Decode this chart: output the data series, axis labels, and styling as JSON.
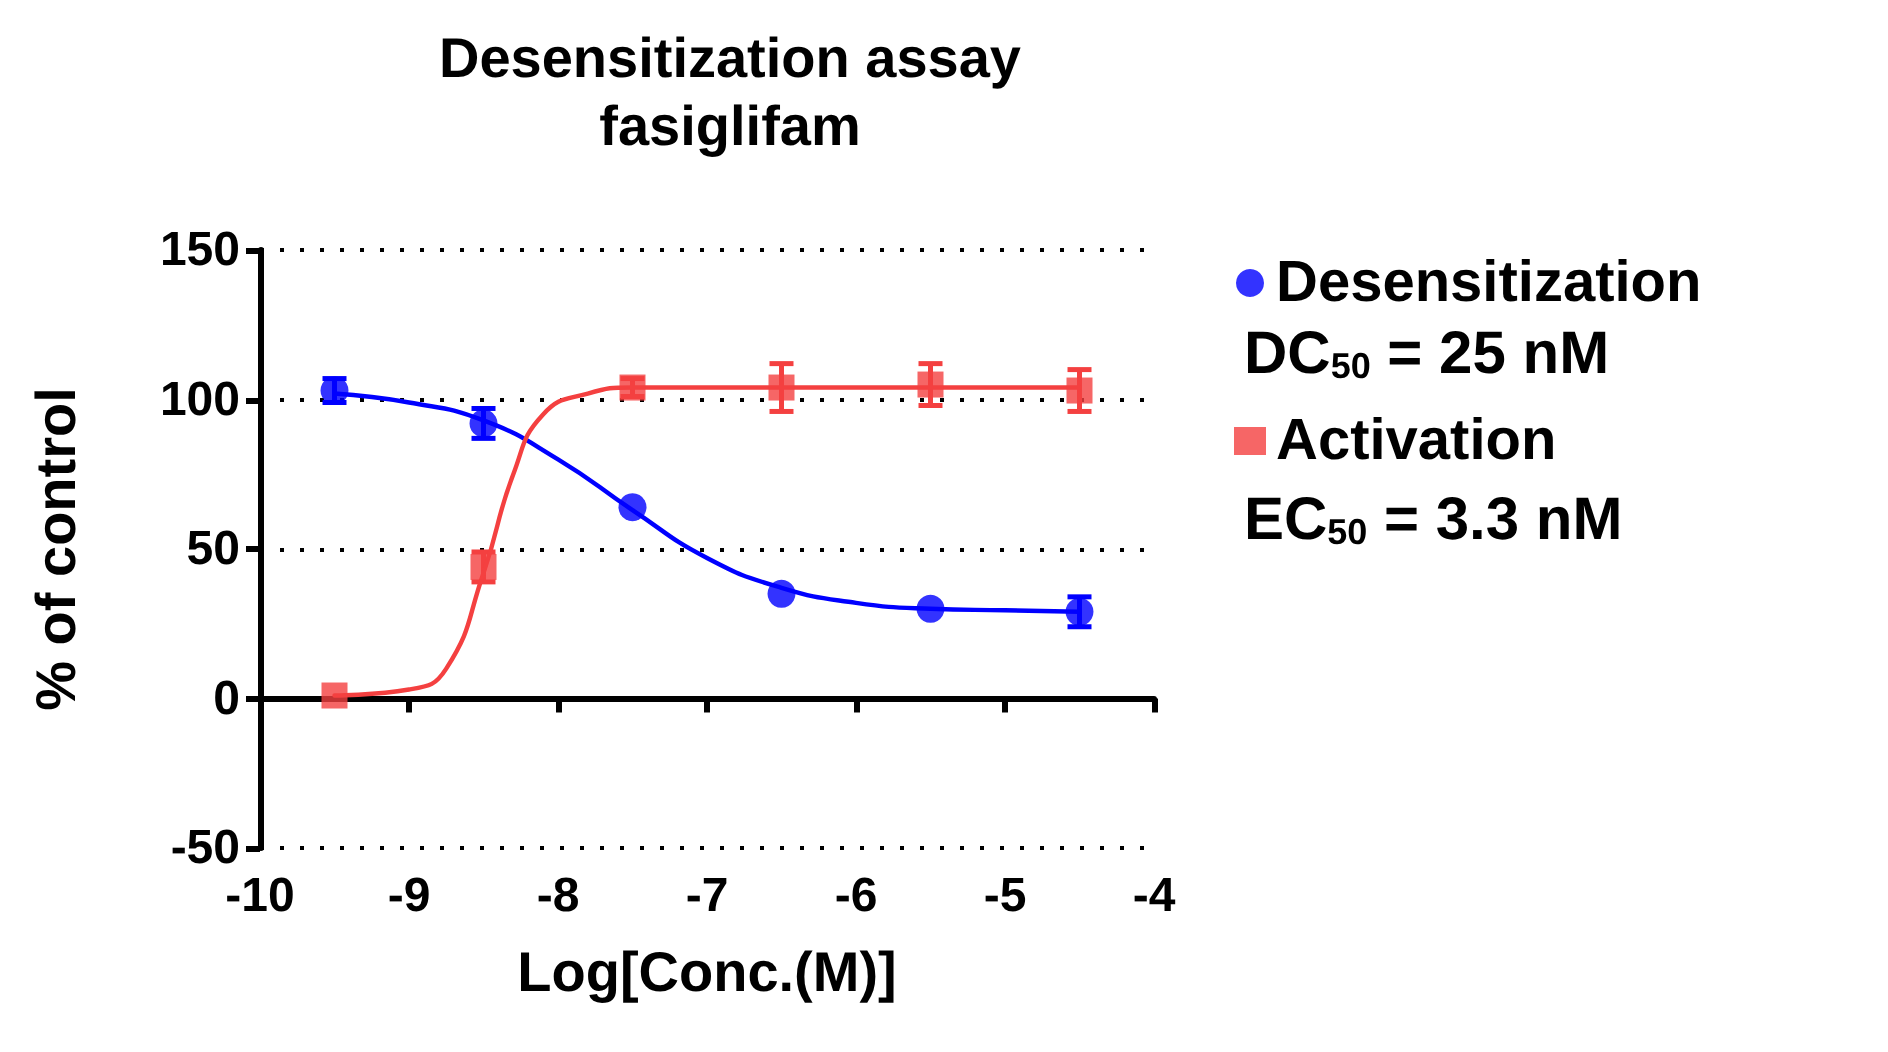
{
  "chart_data": {
    "type": "scatter",
    "title": "Desensitization assay",
    "subtitle": "fasiglifam",
    "xlabel": "Log[Conc.(M)]",
    "ylabel": "% of control",
    "xlim": [
      -10,
      -4
    ],
    "xticks": [
      -10,
      -9,
      -8,
      -7,
      -6,
      -5,
      -4
    ],
    "ylim": [
      -50,
      150
    ],
    "yticks": [
      -50,
      0,
      50,
      100,
      150
    ],
    "grid": "y",
    "legend": "right",
    "annotations": [
      "DC$_{50}$ = 25 nM",
      "EC$_{50}$ = 3.3 nM"
    ],
    "series": [
      {
        "name": "Desensitization",
        "marker": "circle",
        "color": "#0000ff",
        "x": [
          -9.5,
          -8.5,
          -7.5,
          -6.5,
          -5.5,
          -4.5
        ],
        "values": [
          103,
          92,
          64,
          35,
          30,
          29
        ],
        "errors": [
          4,
          5,
          null,
          null,
          null,
          5
        ]
      },
      {
        "name": "Activation",
        "marker": "square",
        "color": "#f44040",
        "x": [
          -9.5,
          -8.5,
          -7.5,
          -6.5,
          -5.5,
          -4.5
        ],
        "values": [
          1,
          44,
          104,
          104,
          105,
          103
        ],
        "errors": [
          null,
          5,
          3,
          8,
          7,
          7
        ]
      },
      {
        "type": "line",
        "marker": "none",
        "color": "#0000ff",
        "x": [
          -9.5,
          -9,
          -8.5,
          -8,
          -7.5,
          -7,
          -6.5,
          -6,
          -5.5,
          -5,
          -4.5
        ],
        "values": [
          102,
          99,
          93,
          80,
          63,
          47,
          37,
          32,
          30,
          29.5,
          29
        ]
      },
      {
        "type": "line",
        "marker": "none",
        "color": "#f44040",
        "x": [
          -9.5,
          -9,
          -8.75,
          -8.5,
          -8.3,
          -8.1,
          -7.8,
          -7.5,
          -6.5,
          -5.5,
          -4.5
        ],
        "values": [
          1,
          3,
          10,
          42,
          75,
          95,
          102,
          104,
          104,
          104,
          104
        ]
      }
    ]
  }
}
